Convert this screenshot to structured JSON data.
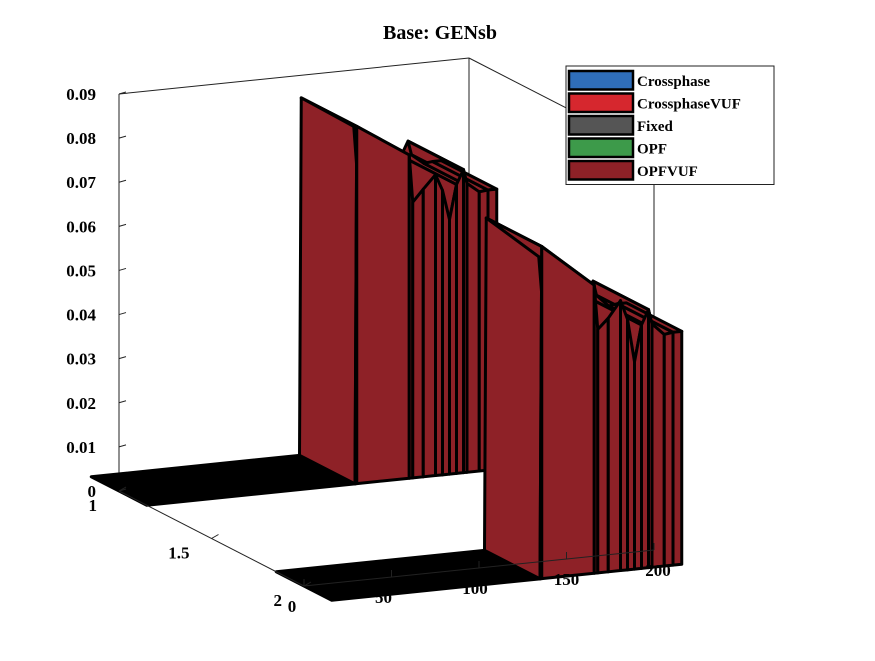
{
  "chart_data": {
    "type": "3d-ribbon",
    "title": "Base: GENsb",
    "xlabel": "",
    "ylabel": "",
    "zlabel": "",
    "x_ticks": [
      "0",
      "50",
      "100",
      "150",
      "200"
    ],
    "y_ticks": [
      "1",
      "1.5",
      "2"
    ],
    "z_ticks": [
      "0",
      "0.01",
      "0.02",
      "0.03",
      "0.04",
      "0.05",
      "0.06",
      "0.07",
      "0.08",
      "0.09"
    ],
    "xlim": [
      0,
      200
    ],
    "ylim": [
      1,
      2
    ],
    "zlim": [
      0,
      0.09
    ],
    "grid": false,
    "legend_position": "top-right",
    "series": [
      {
        "name": "Crossphase",
        "color": "#2f6eba"
      },
      {
        "name": "CrossphaseVUF",
        "color": "#d6272e"
      },
      {
        "name": "Fixed",
        "color": "#555555"
      },
      {
        "name": "OPF",
        "color": "#3d9a4a"
      },
      {
        "name": "OPFVUF",
        "color": "#8e2127"
      }
    ],
    "ribbons": [
      {
        "y": 1,
        "points": [
          [
            0,
            0
          ],
          [
            119,
            0
          ],
          [
            120,
            0.081
          ],
          [
            150,
            0.0733
          ],
          [
            152,
            0.0625
          ],
          [
            158,
            0.0652
          ],
          [
            165,
            0.0682
          ],
          [
            169,
            0.0645
          ],
          [
            173,
            0.0577
          ],
          [
            177,
            0.0655
          ],
          [
            181,
            0.0687
          ],
          [
            183,
            0.0655
          ],
          [
            190,
            0.0633
          ],
          [
            195,
            0.0635
          ],
          [
            200,
            0.0635
          ]
        ]
      },
      {
        "y": 2,
        "points": [
          [
            0,
            0
          ],
          [
            119,
            0
          ],
          [
            120,
            0.0753
          ],
          [
            150,
            0.0653
          ],
          [
            152,
            0.0552
          ],
          [
            158,
            0.0575
          ],
          [
            165,
            0.0612
          ],
          [
            169,
            0.0568
          ],
          [
            173,
            0.047
          ],
          [
            177,
            0.0552
          ],
          [
            181,
            0.0585
          ],
          [
            183,
            0.0552
          ],
          [
            190,
            0.0525
          ],
          [
            195,
            0.0528
          ],
          [
            200,
            0.0528
          ]
        ]
      }
    ]
  }
}
